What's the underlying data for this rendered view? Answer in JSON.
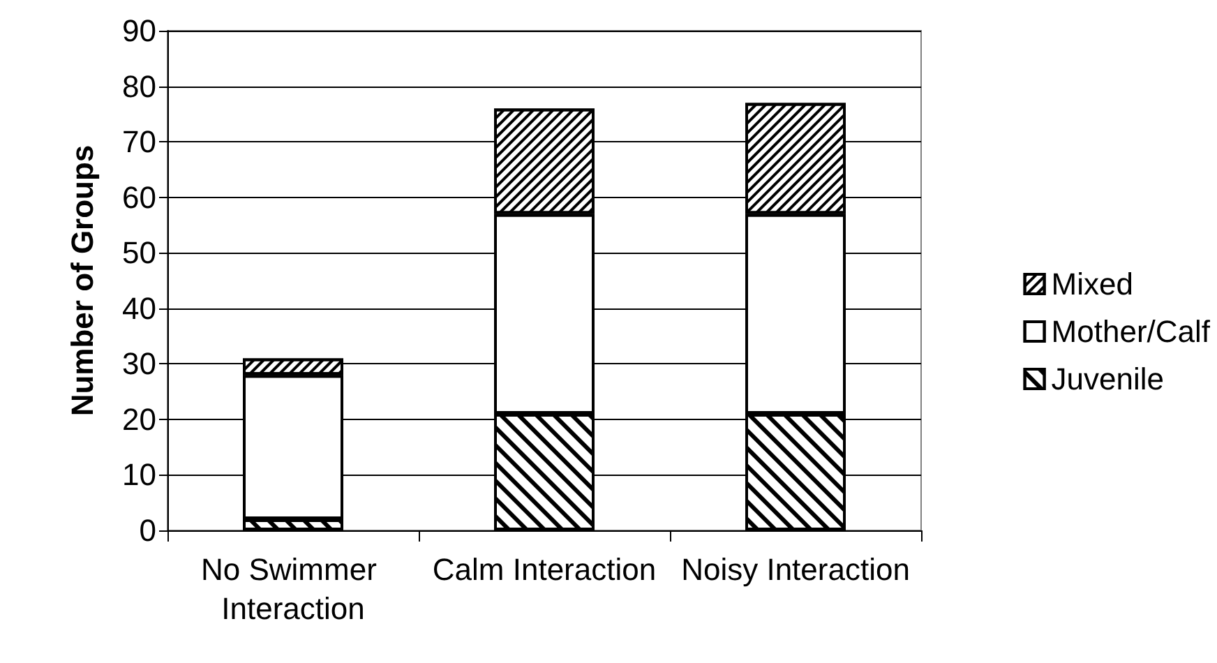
{
  "chart_data": {
    "type": "bar",
    "stacked": true,
    "categories": [
      "No Swimmer Interaction",
      "Calm Interaction",
      "Noisy Interaction"
    ],
    "ylabel": "Number of Groups",
    "series": [
      {
        "name": "Juvenile",
        "color": "#000000",
        "values": [
          2,
          21,
          21
        ]
      },
      {
        "name": "Mother/Calf",
        "color": "#000000",
        "values": [
          26,
          36,
          36
        ]
      },
      {
        "name": "Mixed",
        "color": "#000000",
        "values": [
          3,
          19,
          20
        ]
      }
    ],
    "ylim": [
      0,
      90
    ],
    "yticks": [
      0,
      10,
      20,
      30,
      40,
      50,
      60,
      70,
      80,
      90
    ],
    "grid": "y",
    "legend": "right"
  }
}
